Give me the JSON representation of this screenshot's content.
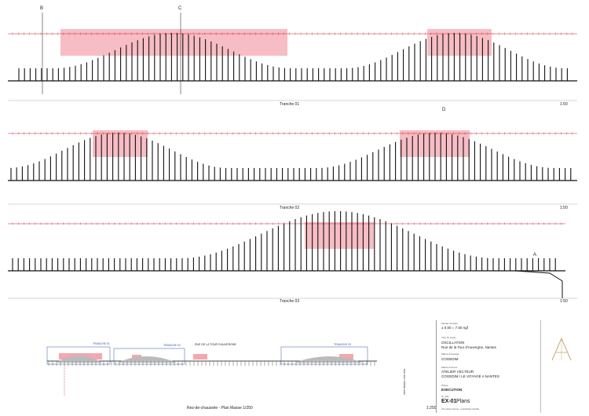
{
  "sections": {
    "section_b": "B",
    "section_c": "C",
    "section_d": "D",
    "section_a": "A"
  },
  "tranches": [
    {
      "caption": "Tranche 01",
      "scale": "1:50"
    },
    {
      "caption": "Tranche 02",
      "scale": "1:50"
    },
    {
      "caption": "Tranche 03",
      "scale": "1:50"
    }
  ],
  "site_plan": {
    "caption": "Rez-de-chaussée - Plan Masse 1/250",
    "scale": "1:250",
    "labels": [
      "TRANCHE 01",
      "TRANCHE 02",
      "RUE DE LA TOUR D'AUVERGNE",
      "TRANCHE 03"
    ],
    "vertical_street": "RUE DES TONNELIERS"
  },
  "title_block": {
    "level_small": "Niveau de base",
    "level": "± 0.00 = 7.50 ngf",
    "project_small": "Titre du projet",
    "project": "OSCILLATION",
    "address": "Rue de la Tour d'Auvergne, Nantes",
    "client_small": "Maître d'ouvrage",
    "client": "COGEDIM",
    "architect_small": "Maître d'œuvre",
    "architect": "ATELIER VECTEUR",
    "architect2": "COGEDIM / LE VOYAGE A NANTES",
    "phase_small": "Phase",
    "phase": "EXECUTION",
    "drawing_no_small": "N° plan",
    "drawing_no": "EX-01",
    "drawing_title": "Plans",
    "footnote": "Tous droits réservés - reproduction interdite"
  },
  "colors": {
    "highlight": "#f4a7b0",
    "line": "#111111",
    "dimension": "#cc2233"
  }
}
